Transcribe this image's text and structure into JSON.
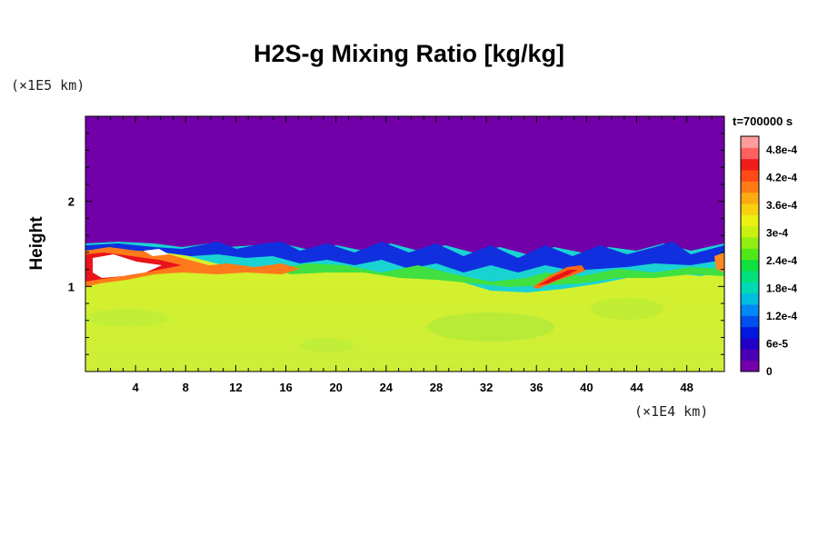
{
  "chart_data": {
    "type": "heatmap",
    "title": "H2S-g Mixing Ratio [kg/kg]",
    "ylabel": "Height",
    "xlabel": "",
    "x_scale_note": "(×1E4 km)",
    "y_scale_note": "(×1E5 km)",
    "time_label": "t=700000 s",
    "xlim": [
      0,
      51
    ],
    "ylim": [
      0,
      3
    ],
    "x_ticks": [
      4,
      8,
      12,
      16,
      20,
      24,
      28,
      32,
      36,
      40,
      44,
      48
    ],
    "x_tick_labels": [
      "4",
      "8",
      "12",
      "16",
      "20",
      "24",
      "28",
      "32",
      "36",
      "40",
      "44",
      "48"
    ],
    "y_ticks": [
      1,
      2
    ],
    "y_tick_labels": [
      "1",
      "2"
    ],
    "colorbar": {
      "min": 0,
      "max": 0.00051,
      "ticks": [
        0,
        6e-05,
        0.00012,
        0.00018,
        0.00024,
        0.0003,
        0.00036,
        0.00042,
        0.00048
      ],
      "tick_labels": [
        "0",
        "6e-5",
        "1.2e-4",
        "1.8e-4",
        "2.4e-4",
        "3e-4",
        "3.6e-4",
        "4.2e-4",
        "4.8e-4"
      ]
    },
    "regions": [
      {
        "name": "upper layer",
        "height_range": [
          1.45,
          3.0
        ],
        "value": 0
      },
      {
        "name": "lower layer",
        "height_range": [
          0,
          1.05
        ],
        "value": 0.00035
      },
      {
        "name": "turbulent interface",
        "height_range": [
          1.0,
          1.5
        ],
        "value_range": [
          3e-05,
          0.00025
        ]
      },
      {
        "name": "high concentration pocket (left)",
        "x_range": [
          0,
          7
        ],
        "height_range": [
          1.1,
          1.45
        ],
        "value": 0.0005
      },
      {
        "name": "high concentration filament",
        "x_range": [
          36,
          40
        ],
        "height_range": [
          1.0,
          1.25
        ],
        "value": 0.00045
      }
    ]
  }
}
